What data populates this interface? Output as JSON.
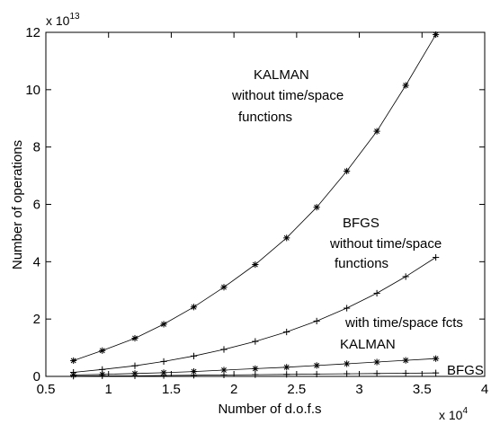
{
  "chart_data": {
    "type": "line",
    "title": "",
    "xlabel": "Number of d.o.f.s",
    "ylabel": "Number of operations",
    "x_exponent_label": "x 10",
    "x_exponent_power": "4",
    "y_exponent_label": "x 10",
    "y_exponent_power": "13",
    "xlim": [
      0.5,
      4
    ],
    "ylim": [
      0,
      12
    ],
    "x_ticks": [
      0.5,
      1,
      1.5,
      2,
      2.5,
      3,
      3.5,
      4
    ],
    "x_tick_labels": [
      "0.5",
      "1",
      "1.5",
      "2",
      "2.5",
      "3",
      "3.5",
      "4"
    ],
    "y_ticks": [
      0,
      2,
      4,
      6,
      8,
      10,
      12
    ],
    "y_tick_labels": [
      "0",
      "2",
      "4",
      "6",
      "8",
      "10",
      "12"
    ],
    "grid": false,
    "x": [
      0.72,
      0.95,
      1.21,
      1.44,
      1.68,
      1.92,
      2.17,
      2.42,
      2.66,
      2.9,
      3.14,
      3.37,
      3.61
    ],
    "series": [
      {
        "marker": "*",
        "values": [
          0.55,
          0.9,
          1.33,
          1.82,
          2.42,
          3.11,
          3.9,
          4.83,
          5.9,
          7.16,
          8.55,
          10.15,
          11.92
        ]
      },
      {
        "marker": "+",
        "values": [
          0.14,
          0.24,
          0.37,
          0.52,
          0.71,
          0.94,
          1.22,
          1.55,
          1.93,
          2.38,
          2.9,
          3.48,
          4.15
        ]
      },
      {
        "marker": "*",
        "values": [
          0.05,
          0.07,
          0.1,
          0.13,
          0.17,
          0.22,
          0.27,
          0.32,
          0.38,
          0.44,
          0.5,
          0.56,
          0.62
        ]
      },
      {
        "marker": "+",
        "values": [
          0.01,
          0.02,
          0.02,
          0.03,
          0.04,
          0.05,
          0.06,
          0.07,
          0.08,
          0.09,
          0.1,
          0.11,
          0.12
        ]
      }
    ],
    "annotations": [
      {
        "text": "KALMAN"
      },
      {
        "text": "without time/space"
      },
      {
        "text": "functions"
      },
      {
        "text": "BFGS"
      },
      {
        "text": "without time/space"
      },
      {
        "text": "functions"
      },
      {
        "text": "with time/space fcts"
      },
      {
        "text": "KALMAN"
      },
      {
        "text": "BFGS"
      }
    ]
  }
}
